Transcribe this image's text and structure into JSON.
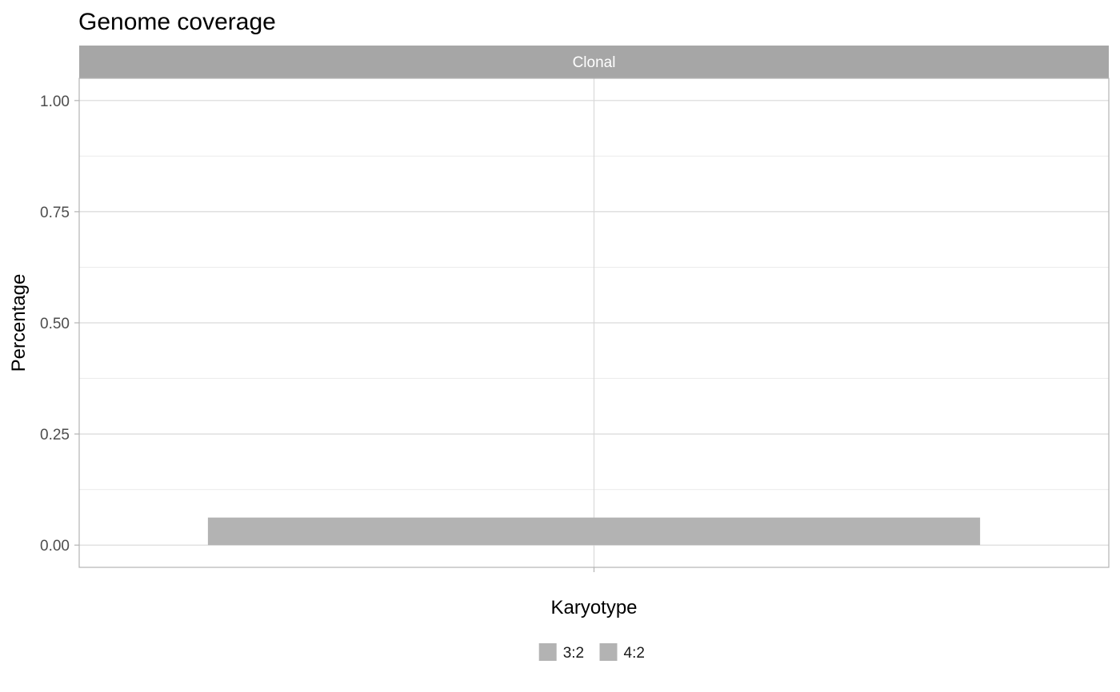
{
  "chart_data": {
    "type": "bar",
    "title": "Genome coverage",
    "facet": "Clonal",
    "xlabel": "Karyotype",
    "ylabel": "Percentage",
    "x_tick_labels": [
      ""
    ],
    "ylim": [
      -0.05,
      1.05
    ],
    "yticks": [
      {
        "value": 0.0,
        "label": "0.00"
      },
      {
        "value": 0.25,
        "label": "0.25"
      },
      {
        "value": 0.5,
        "label": "0.50"
      },
      {
        "value": 0.75,
        "label": "0.75"
      },
      {
        "value": 1.0,
        "label": "1.00"
      }
    ],
    "minor_yticks": [
      0.125,
      0.375,
      0.625,
      0.875
    ],
    "grid": true,
    "stacked": true,
    "legend_position": "bottom",
    "series": [
      {
        "name": "3:2",
        "color": "#b3b3b3",
        "values": [
          0.0
        ]
      },
      {
        "name": "4:2",
        "color": "#b3b3b3",
        "values": [
          0.062
        ]
      }
    ]
  }
}
